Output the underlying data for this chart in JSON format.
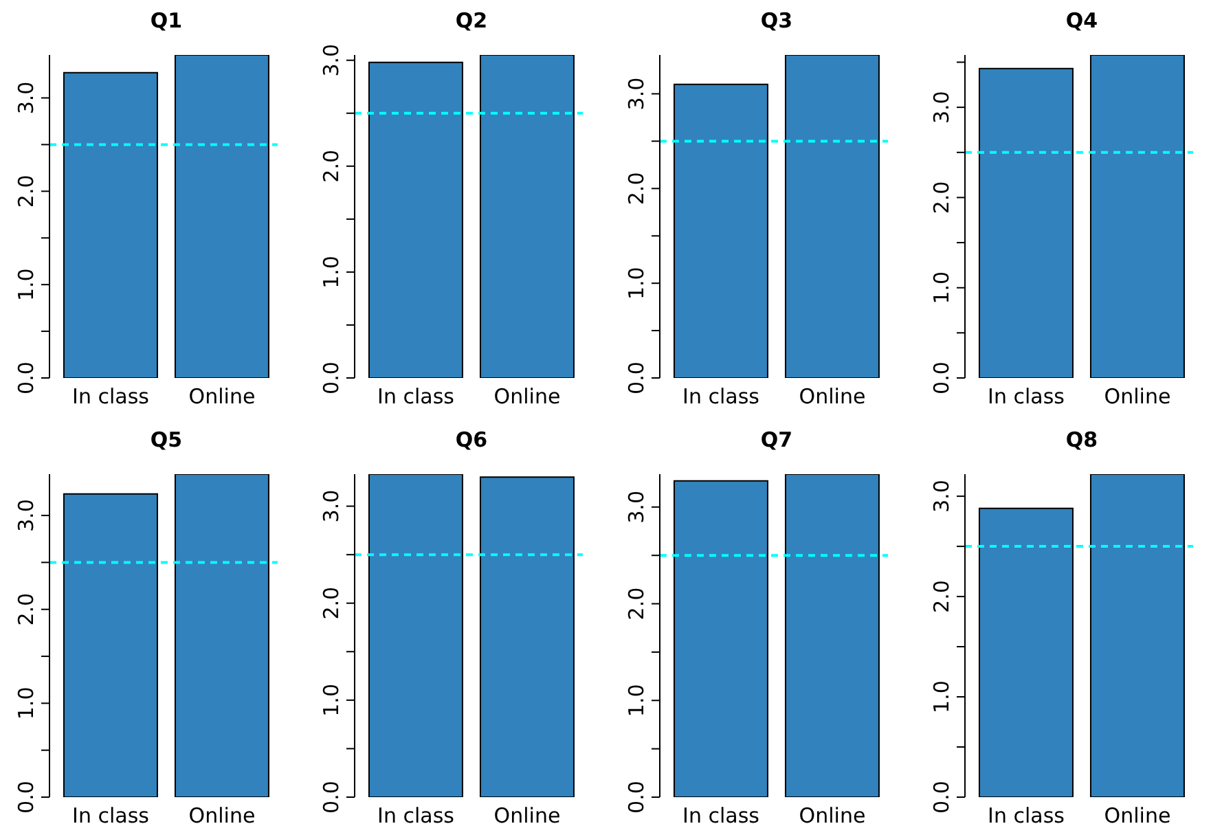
{
  "chart_data": [
    {
      "type": "bar",
      "title": "Q1",
      "categories": [
        "In class",
        "Online"
      ],
      "values": [
        3.27,
        3.46
      ],
      "color": "#3182bd",
      "ylim": [
        0,
        3.46
      ],
      "yticks": [
        {
          "value": 0,
          "label": "0.0"
        },
        {
          "value": 0.5,
          "label": null
        },
        {
          "value": 1,
          "label": "1.0"
        },
        {
          "value": 1.5,
          "label": null
        },
        {
          "value": 2,
          "label": "2.0"
        },
        {
          "value": 2.5,
          "label": null
        },
        {
          "value": 3,
          "label": "3.0"
        }
      ],
      "ref_lines": [
        {
          "axis": "y",
          "value": 2.5,
          "color": "#00ffff",
          "line_style": "dashed"
        }
      ]
    },
    {
      "type": "bar",
      "title": "Q2",
      "categories": [
        "In class",
        "Online"
      ],
      "values": [
        2.98,
        3.05
      ],
      "color": "#3182bd",
      "ylim": [
        0,
        3.05
      ],
      "yticks": [
        {
          "value": 0,
          "label": "0.0"
        },
        {
          "value": 0.5,
          "label": null
        },
        {
          "value": 1,
          "label": "1.0"
        },
        {
          "value": 1.5,
          "label": null
        },
        {
          "value": 2,
          "label": "2.0"
        },
        {
          "value": 2.5,
          "label": null
        },
        {
          "value": 3,
          "label": "3.0"
        }
      ],
      "ref_lines": [
        {
          "axis": "y",
          "value": 2.5,
          "color": "#00ffff",
          "line_style": "dashed"
        }
      ]
    },
    {
      "type": "bar",
      "title": "Q3",
      "categories": [
        "In class",
        "Online"
      ],
      "values": [
        3.1,
        3.41
      ],
      "color": "#3182bd",
      "ylim": [
        0,
        3.41
      ],
      "yticks": [
        {
          "value": 0,
          "label": "0.0"
        },
        {
          "value": 0.5,
          "label": null
        },
        {
          "value": 1,
          "label": "1.0"
        },
        {
          "value": 1.5,
          "label": null
        },
        {
          "value": 2,
          "label": "2.0"
        },
        {
          "value": 2.5,
          "label": null
        },
        {
          "value": 3,
          "label": "3.0"
        }
      ],
      "ref_lines": [
        {
          "axis": "y",
          "value": 2.5,
          "color": "#00ffff",
          "line_style": "dashed"
        }
      ]
    },
    {
      "type": "bar",
      "title": "Q4",
      "categories": [
        "In class",
        "Online"
      ],
      "values": [
        3.43,
        3.58
      ],
      "color": "#3182bd",
      "ylim": [
        0,
        3.58
      ],
      "yticks": [
        {
          "value": 0,
          "label": "0.0"
        },
        {
          "value": 0.5,
          "label": null
        },
        {
          "value": 1,
          "label": "1.0"
        },
        {
          "value": 1.5,
          "label": null
        },
        {
          "value": 2,
          "label": "2.0"
        },
        {
          "value": 2.5,
          "label": null
        },
        {
          "value": 3,
          "label": "3.0"
        },
        {
          "value": 3.5,
          "label": null
        }
      ],
      "ref_lines": [
        {
          "axis": "y",
          "value": 2.5,
          "color": "#00ffff",
          "line_style": "dashed"
        }
      ]
    },
    {
      "type": "bar",
      "title": "Q5",
      "categories": [
        "In class",
        "Online"
      ],
      "values": [
        3.23,
        3.44
      ],
      "color": "#3182bd",
      "ylim": [
        0,
        3.44
      ],
      "yticks": [
        {
          "value": 0,
          "label": "0.0"
        },
        {
          "value": 0.5,
          "label": null
        },
        {
          "value": 1,
          "label": "1.0"
        },
        {
          "value": 1.5,
          "label": null
        },
        {
          "value": 2,
          "label": "2.0"
        },
        {
          "value": 2.5,
          "label": null
        },
        {
          "value": 3,
          "label": "3.0"
        }
      ],
      "ref_lines": [
        {
          "axis": "y",
          "value": 2.5,
          "color": "#00ffff",
          "line_style": "dashed"
        }
      ]
    },
    {
      "type": "bar",
      "title": "Q6",
      "categories": [
        "In class",
        "Online"
      ],
      "values": [
        3.33,
        3.3
      ],
      "color": "#3182bd",
      "ylim": [
        0,
        3.33
      ],
      "yticks": [
        {
          "value": 0,
          "label": "0.0"
        },
        {
          "value": 0.5,
          "label": null
        },
        {
          "value": 1,
          "label": "1.0"
        },
        {
          "value": 1.5,
          "label": null
        },
        {
          "value": 2,
          "label": "2.0"
        },
        {
          "value": 2.5,
          "label": null
        },
        {
          "value": 3,
          "label": "3.0"
        }
      ],
      "ref_lines": [
        {
          "axis": "y",
          "value": 2.5,
          "color": "#00ffff",
          "line_style": "dashed"
        }
      ]
    },
    {
      "type": "bar",
      "title": "Q7",
      "categories": [
        "In class",
        "Online"
      ],
      "values": [
        3.27,
        3.34
      ],
      "color": "#3182bd",
      "ylim": [
        0,
        3.34
      ],
      "yticks": [
        {
          "value": 0,
          "label": "0.0"
        },
        {
          "value": 0.5,
          "label": null
        },
        {
          "value": 1,
          "label": "1.0"
        },
        {
          "value": 1.5,
          "label": null
        },
        {
          "value": 2,
          "label": "2.0"
        },
        {
          "value": 2.5,
          "label": null
        },
        {
          "value": 3,
          "label": "3.0"
        }
      ],
      "ref_lines": [
        {
          "axis": "y",
          "value": 2.5,
          "color": "#00ffff",
          "line_style": "dashed"
        }
      ]
    },
    {
      "type": "bar",
      "title": "Q8",
      "categories": [
        "In class",
        "Online"
      ],
      "values": [
        2.88,
        3.22
      ],
      "color": "#3182bd",
      "ylim": [
        0,
        3.22
      ],
      "yticks": [
        {
          "value": 0,
          "label": "0.0"
        },
        {
          "value": 0.5,
          "label": null
        },
        {
          "value": 1,
          "label": "1.0"
        },
        {
          "value": 1.5,
          "label": null
        },
        {
          "value": 2,
          "label": "2.0"
        },
        {
          "value": 2.5,
          "label": null
        },
        {
          "value": 3,
          "label": "3.0"
        }
      ],
      "ref_lines": [
        {
          "axis": "y",
          "value": 2.5,
          "color": "#00ffff",
          "line_style": "dashed"
        }
      ]
    }
  ]
}
